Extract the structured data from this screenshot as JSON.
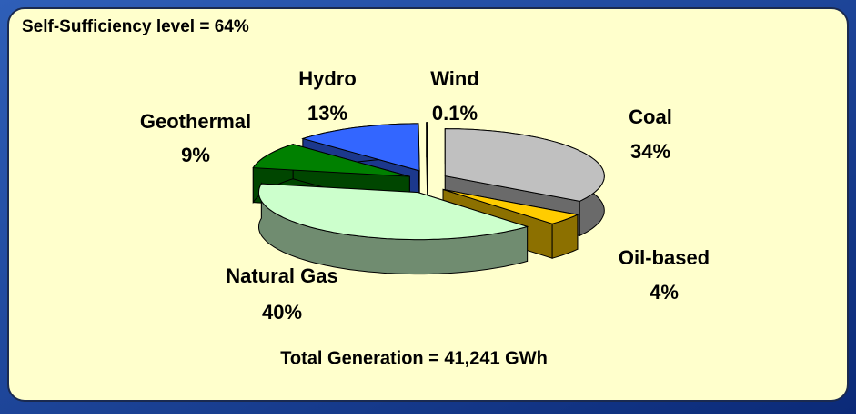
{
  "chart_data": {
    "type": "pie",
    "title": "Self-Sufficiency level = 64%",
    "annotation": "Total Generation = 41,241 GWh",
    "categories": [
      "Coal",
      "Oil-based",
      "Natural Gas",
      "Geothermal",
      "Hydro",
      "Wind"
    ],
    "values": [
      34,
      4,
      40,
      9,
      13,
      0.1
    ],
    "value_labels": [
      "34%",
      "4%",
      "40%",
      "9%",
      "13%",
      "0.1%"
    ],
    "colors": [
      "#c0c0c0",
      "#ffcc00",
      "#ccffcc",
      "#008000",
      "#3366ff",
      "#ffffff"
    ]
  }
}
